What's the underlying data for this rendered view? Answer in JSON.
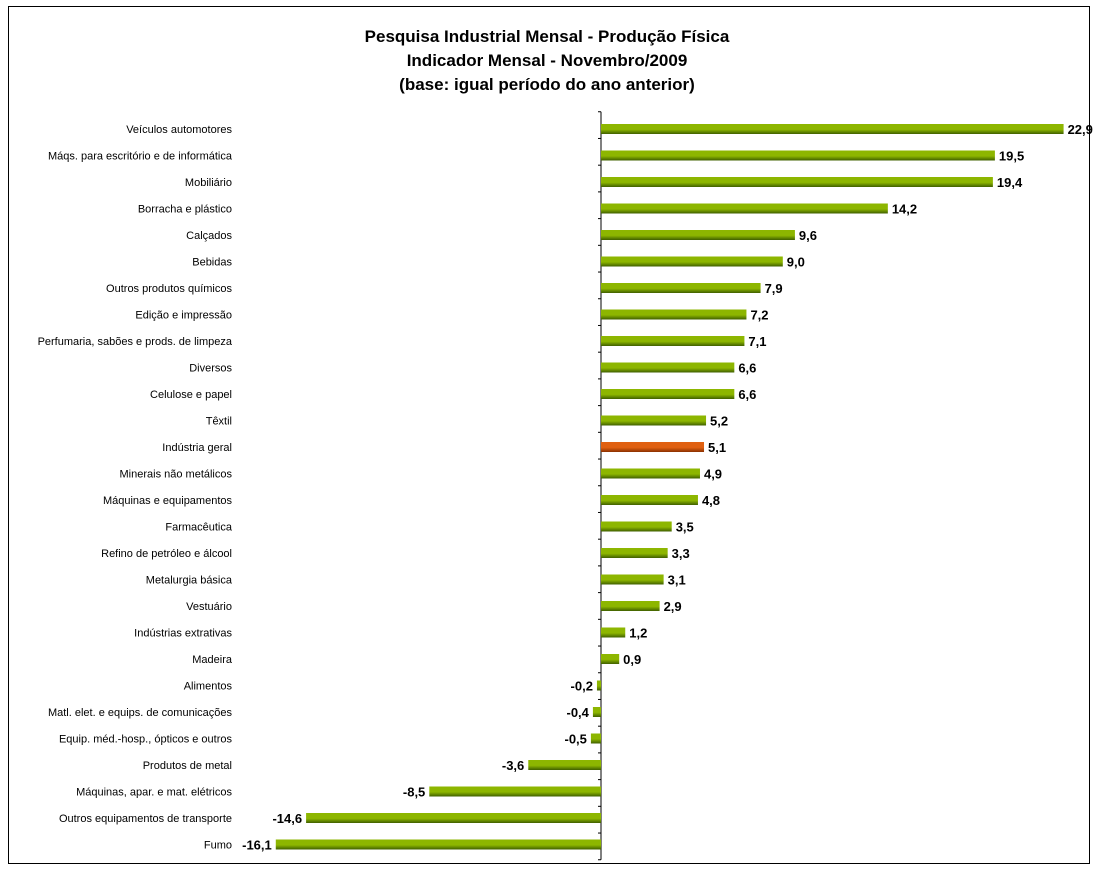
{
  "chart_data": {
    "type": "bar",
    "orientation": "horizontal",
    "title": [
      "Pesquisa Industrial Mensal - Produção Física",
      "Indicador Mensal - Novembro/2009",
      "(base: igual período do ano anterior)"
    ],
    "xlabel": "",
    "ylabel": "",
    "grid": false,
    "legend": "none",
    "categories": [
      "Veículos automotores",
      "Máqs. para escritório e de informática",
      "Mobiliário",
      "Borracha e plástico",
      "Calçados",
      "Bebidas",
      "Outros produtos químicos",
      "Edição e impressão",
      "Perfumaria, sabões e prods. de limpeza",
      "Diversos",
      "Celulose e papel",
      "Têxtil",
      "Indústria geral",
      "Minerais não metálicos",
      "Máquinas e equipamentos",
      "Farmacêutica",
      "Refino de petróleo e álcool",
      "Metalurgia básica",
      "Vestuário",
      "Indústrias extrativas",
      "Madeira",
      "Alimentos",
      "Matl. elet. e equips. de comunicações",
      "Equip. méd.-hosp., ópticos e outros",
      "Produtos de metal",
      "Máquinas, apar. e mat. elétricos",
      "Outros equipamentos de transporte",
      "Fumo"
    ],
    "values": [
      22.9,
      19.5,
      19.4,
      14.2,
      9.6,
      9.0,
      7.9,
      7.2,
      7.1,
      6.6,
      6.6,
      5.2,
      5.1,
      4.9,
      4.8,
      3.5,
      3.3,
      3.1,
      2.9,
      1.2,
      0.9,
      -0.2,
      -0.4,
      -0.5,
      -3.6,
      -8.5,
      -14.6,
      -16.1
    ],
    "value_labels": [
      "22,9",
      "19,5",
      "19,4",
      "14,2",
      "9,6",
      "9,0",
      "7,9",
      "7,2",
      "7,1",
      "6,6",
      "6,6",
      "5,2",
      "5,1",
      "4,9",
      "4,8",
      "3,5",
      "3,3",
      "3,1",
      "2,9",
      "1,2",
      "0,9",
      "-0,2",
      "-0,4",
      "-0,5",
      "-3,6",
      "-8,5",
      "-14,6",
      "-16,1"
    ],
    "highlight_category": "Indústria geral",
    "colors": {
      "bar": "#8DB600",
      "bar_dark": "#3F5F00",
      "highlight": "#E06010",
      "highlight_dark": "#8A3000",
      "axis": "#000000"
    }
  }
}
